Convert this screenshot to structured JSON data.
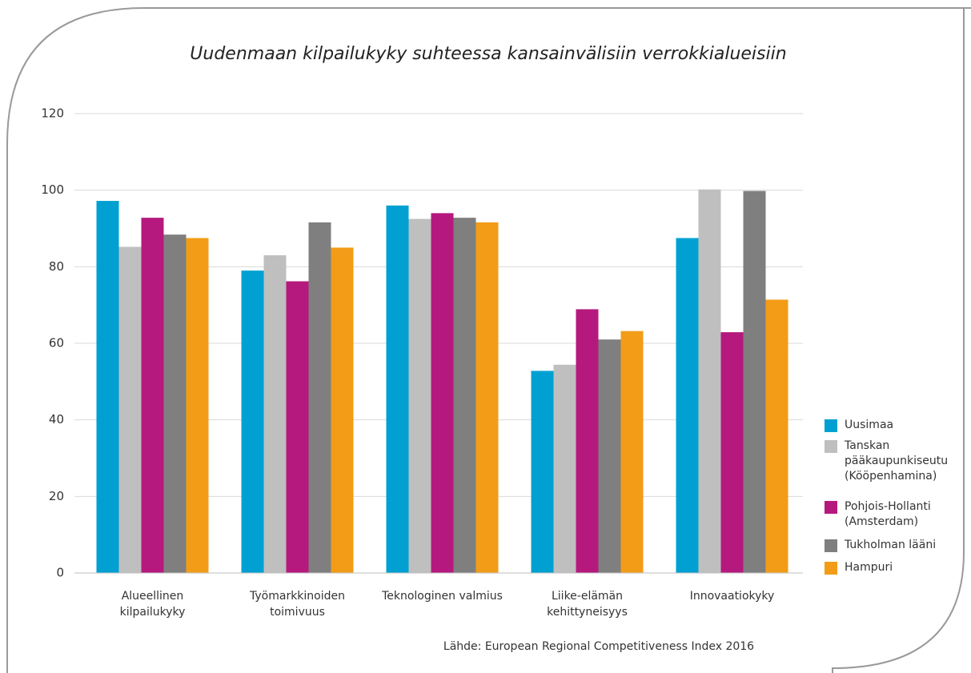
{
  "chart_data": {
    "type": "bar",
    "title": "Uudenmaan kilpailukyky suhteessa kansainvälisiin verrokkialueisiin",
    "source": "Lähde: European Regional Competitiveness Index 2016",
    "categories": [
      "Alueellinen\nkilpailukyky",
      "Työmarkkinoiden\ntoimivuus",
      "Teknologinen valmius",
      "Liike-elämän\nkehittyneisyys",
      "Innovaatiokyky"
    ],
    "series": [
      {
        "name": "Uusimaa",
        "color": "#00a0d2",
        "values": [
          97.2,
          79,
          96,
          52.8,
          87.5
        ]
      },
      {
        "name": "Tanskan\npääkaupunkiseutu\n(Kööpenhamina)",
        "color": "#bfbfbf",
        "values": [
          85.2,
          83,
          92.5,
          54.4,
          100.2
        ]
      },
      {
        "name": "Pohjois-Hollanti\n(Amsterdam)",
        "color": "#b5197e",
        "values": [
          92.8,
          76.2,
          94,
          68.9,
          62.9
        ]
      },
      {
        "name": "Tukholman lääni",
        "color": "#7f7f7f",
        "values": [
          88.4,
          91.6,
          92.8,
          61,
          99.8
        ]
      },
      {
        "name": "Hampuri",
        "color": "#f39c18",
        "values": [
          87.5,
          85,
          91.6,
          63.2,
          71.4
        ]
      }
    ],
    "ylim": [
      0,
      120
    ],
    "yticks": [
      0,
      20,
      40,
      60,
      80,
      100,
      120
    ],
    "grid": true,
    "legend": "right"
  }
}
